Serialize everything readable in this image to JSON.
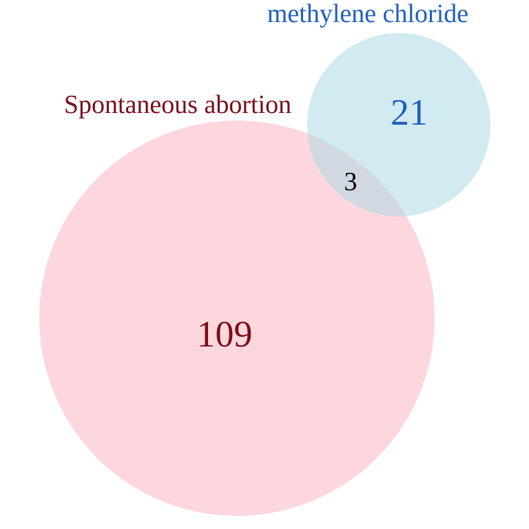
{
  "sets": [
    {
      "label": "Spontaneous abortion",
      "only_count": "109",
      "fill_color": "#fbc6cf",
      "text_color": "#7a0e1a"
    },
    {
      "label": "methylene chloride",
      "only_count": "21",
      "fill_color": "#add8e6",
      "text_color": "#1f5fbf"
    }
  ],
  "intersection": {
    "count": "3",
    "text_color": "#000000"
  }
}
